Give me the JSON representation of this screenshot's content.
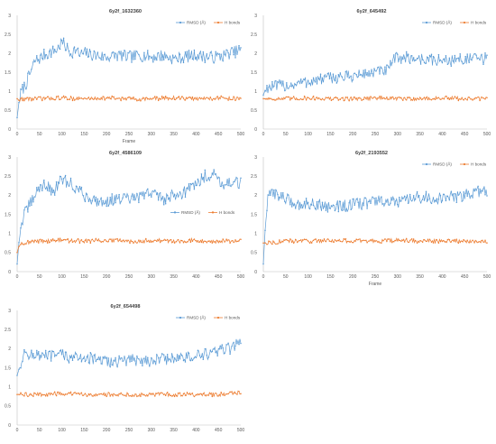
{
  "chart_data": [
    {
      "type": "line",
      "title": "6y2f_1632360",
      "xlabel": "Frame",
      "ylabel": "",
      "xlim": [
        0,
        500
      ],
      "ylim": [
        0,
        3
      ],
      "xticks": [
        0,
        50,
        100,
        150,
        200,
        250,
        300,
        350,
        400,
        450,
        500
      ],
      "yticks": [
        0,
        0.5,
        1,
        1.5,
        2,
        2.5,
        3
      ],
      "legend_position": "top-right",
      "grid": false,
      "series": [
        {
          "name": "RMSD (Å)",
          "color": "#5b9bd5",
          "x": [
            0,
            5,
            10,
            20,
            30,
            40,
            50,
            60,
            70,
            80,
            90,
            100,
            110,
            120,
            130,
            140,
            150,
            175,
            200,
            225,
            250,
            275,
            300,
            325,
            350,
            375,
            400,
            425,
            450,
            475,
            490,
            500
          ],
          "y": [
            0.3,
            0.8,
            1.0,
            1.2,
            1.5,
            1.8,
            1.85,
            1.95,
            2.0,
            2.05,
            2.1,
            2.3,
            2.15,
            2.0,
            2.1,
            1.95,
            2.0,
            1.95,
            1.9,
            1.95,
            1.9,
            1.95,
            1.9,
            1.95,
            1.85,
            1.9,
            1.95,
            1.9,
            1.9,
            2.0,
            2.05,
            2.1
          ]
        },
        {
          "name": "H bonds",
          "color": "#ed7d31",
          "x": [
            0,
            5,
            10,
            50,
            100,
            150,
            200,
            250,
            300,
            350,
            400,
            450,
            500
          ],
          "y": [
            0.8,
            0.75,
            0.8,
            0.8,
            0.82,
            0.8,
            0.82,
            0.8,
            0.8,
            0.82,
            0.8,
            0.82,
            0.8
          ]
        }
      ]
    },
    {
      "type": "line",
      "title": "6y2f_645492",
      "xlabel": "",
      "ylabel": "",
      "xlim": [
        0,
        500
      ],
      "ylim": [
        0,
        3
      ],
      "xticks": [
        0,
        50,
        100,
        150,
        200,
        250,
        300,
        350,
        400,
        450,
        500
      ],
      "yticks": [
        0,
        0.5,
        1,
        1.5,
        2,
        2.5,
        3
      ],
      "legend_position": "top-right",
      "grid": false,
      "series": [
        {
          "name": "RMSD (Å)",
          "color": "#5b9bd5",
          "x": [
            0,
            5,
            10,
            50,
            100,
            150,
            200,
            250,
            280,
            290,
            300,
            350,
            400,
            450,
            500
          ],
          "y": [
            0.9,
            1.05,
            1.1,
            1.15,
            1.25,
            1.35,
            1.4,
            1.5,
            1.55,
            1.8,
            1.9,
            1.85,
            1.8,
            1.85,
            1.85
          ]
        },
        {
          "name": "H bonds",
          "color": "#ed7d31",
          "x": [
            0,
            50,
            100,
            150,
            200,
            250,
            300,
            350,
            400,
            450,
            500
          ],
          "y": [
            0.8,
            0.8,
            0.82,
            0.8,
            0.8,
            0.82,
            0.8,
            0.8,
            0.82,
            0.8,
            0.8
          ]
        }
      ]
    },
    {
      "type": "line",
      "title": "6y2f_4586109",
      "xlabel": "",
      "ylabel": "",
      "xlim": [
        0,
        500
      ],
      "ylim": [
        0,
        3
      ],
      "xticks": [
        0,
        50,
        100,
        150,
        200,
        250,
        300,
        350,
        400,
        450,
        500
      ],
      "yticks": [
        0,
        0.5,
        1,
        1.5,
        2,
        2.5,
        3
      ],
      "legend_position": "center-right",
      "grid": false,
      "series": [
        {
          "name": "RMSD (Å)",
          "color": "#5b9bd5",
          "x": [
            0,
            5,
            10,
            20,
            30,
            40,
            50,
            60,
            80,
            100,
            120,
            150,
            175,
            200,
            225,
            250,
            275,
            300,
            325,
            350,
            375,
            400,
            420,
            440,
            460,
            480,
            500
          ],
          "y": [
            0.2,
            0.9,
            1.3,
            1.6,
            1.8,
            2.0,
            2.2,
            2.3,
            2.1,
            2.4,
            2.3,
            2.0,
            1.85,
            1.85,
            1.9,
            1.9,
            1.95,
            2.1,
            1.9,
            2.0,
            2.1,
            2.3,
            2.5,
            2.55,
            2.3,
            2.35,
            2.3
          ]
        },
        {
          "name": "H bonds",
          "color": "#ed7d31",
          "x": [
            0,
            5,
            10,
            50,
            100,
            150,
            200,
            250,
            300,
            350,
            400,
            450,
            500
          ],
          "y": [
            0.5,
            0.7,
            0.75,
            0.8,
            0.82,
            0.8,
            0.82,
            0.8,
            0.82,
            0.8,
            0.82,
            0.8,
            0.8
          ]
        }
      ]
    },
    {
      "type": "line",
      "title": "6y2f_2193552",
      "xlabel": "Frame",
      "ylabel": "",
      "xlim": [
        0,
        500
      ],
      "ylim": [
        0,
        3
      ],
      "xticks": [
        0,
        50,
        100,
        150,
        200,
        250,
        300,
        350,
        400,
        450,
        500
      ],
      "yticks": [
        0,
        0.5,
        1,
        1.5,
        2,
        2.5,
        3
      ],
      "legend_position": "top-right",
      "grid": false,
      "series": [
        {
          "name": "RMSD (Å)",
          "color": "#5b9bd5",
          "x": [
            0,
            5,
            10,
            20,
            40,
            60,
            80,
            100,
            150,
            200,
            250,
            300,
            350,
            400,
            450,
            480,
            500
          ],
          "y": [
            0.2,
            1.3,
            1.9,
            2.1,
            1.95,
            1.85,
            1.75,
            1.8,
            1.7,
            1.75,
            1.85,
            1.8,
            1.95,
            1.9,
            2.0,
            2.1,
            2.1
          ]
        },
        {
          "name": "H bonds",
          "color": "#ed7d31",
          "x": [
            0,
            50,
            100,
            150,
            200,
            250,
            300,
            350,
            400,
            450,
            500
          ],
          "y": [
            0.75,
            0.8,
            0.8,
            0.82,
            0.8,
            0.8,
            0.82,
            0.8,
            0.8,
            0.8,
            0.8
          ]
        }
      ]
    },
    {
      "type": "line",
      "title": "6y2f_654498",
      "xlabel": "",
      "ylabel": "",
      "xlim": [
        0,
        500
      ],
      "ylim": [
        0,
        3
      ],
      "xticks": [
        0,
        50,
        100,
        150,
        200,
        250,
        300,
        350,
        400,
        450,
        500
      ],
      "yticks": [
        0,
        0.5,
        1,
        1.5,
        2,
        2.5,
        3
      ],
      "legend_position": "top-right",
      "grid": false,
      "series": [
        {
          "name": "RMSD (Å)",
          "color": "#5b9bd5",
          "x": [
            0,
            5,
            10,
            20,
            30,
            50,
            75,
            100,
            125,
            150,
            175,
            200,
            250,
            300,
            350,
            400,
            425,
            450,
            475,
            490,
            500
          ],
          "y": [
            1.3,
            1.5,
            1.7,
            1.9,
            1.85,
            1.8,
            1.8,
            1.85,
            1.75,
            1.8,
            1.7,
            1.65,
            1.7,
            1.7,
            1.75,
            1.8,
            1.85,
            1.95,
            2.0,
            2.1,
            2.2
          ]
        },
        {
          "name": "H bonds",
          "color": "#ed7d31",
          "x": [
            0,
            50,
            100,
            150,
            200,
            250,
            300,
            350,
            400,
            450,
            500
          ],
          "y": [
            0.8,
            0.8,
            0.82,
            0.8,
            0.8,
            0.8,
            0.8,
            0.8,
            0.8,
            0.8,
            0.85
          ]
        }
      ]
    }
  ]
}
